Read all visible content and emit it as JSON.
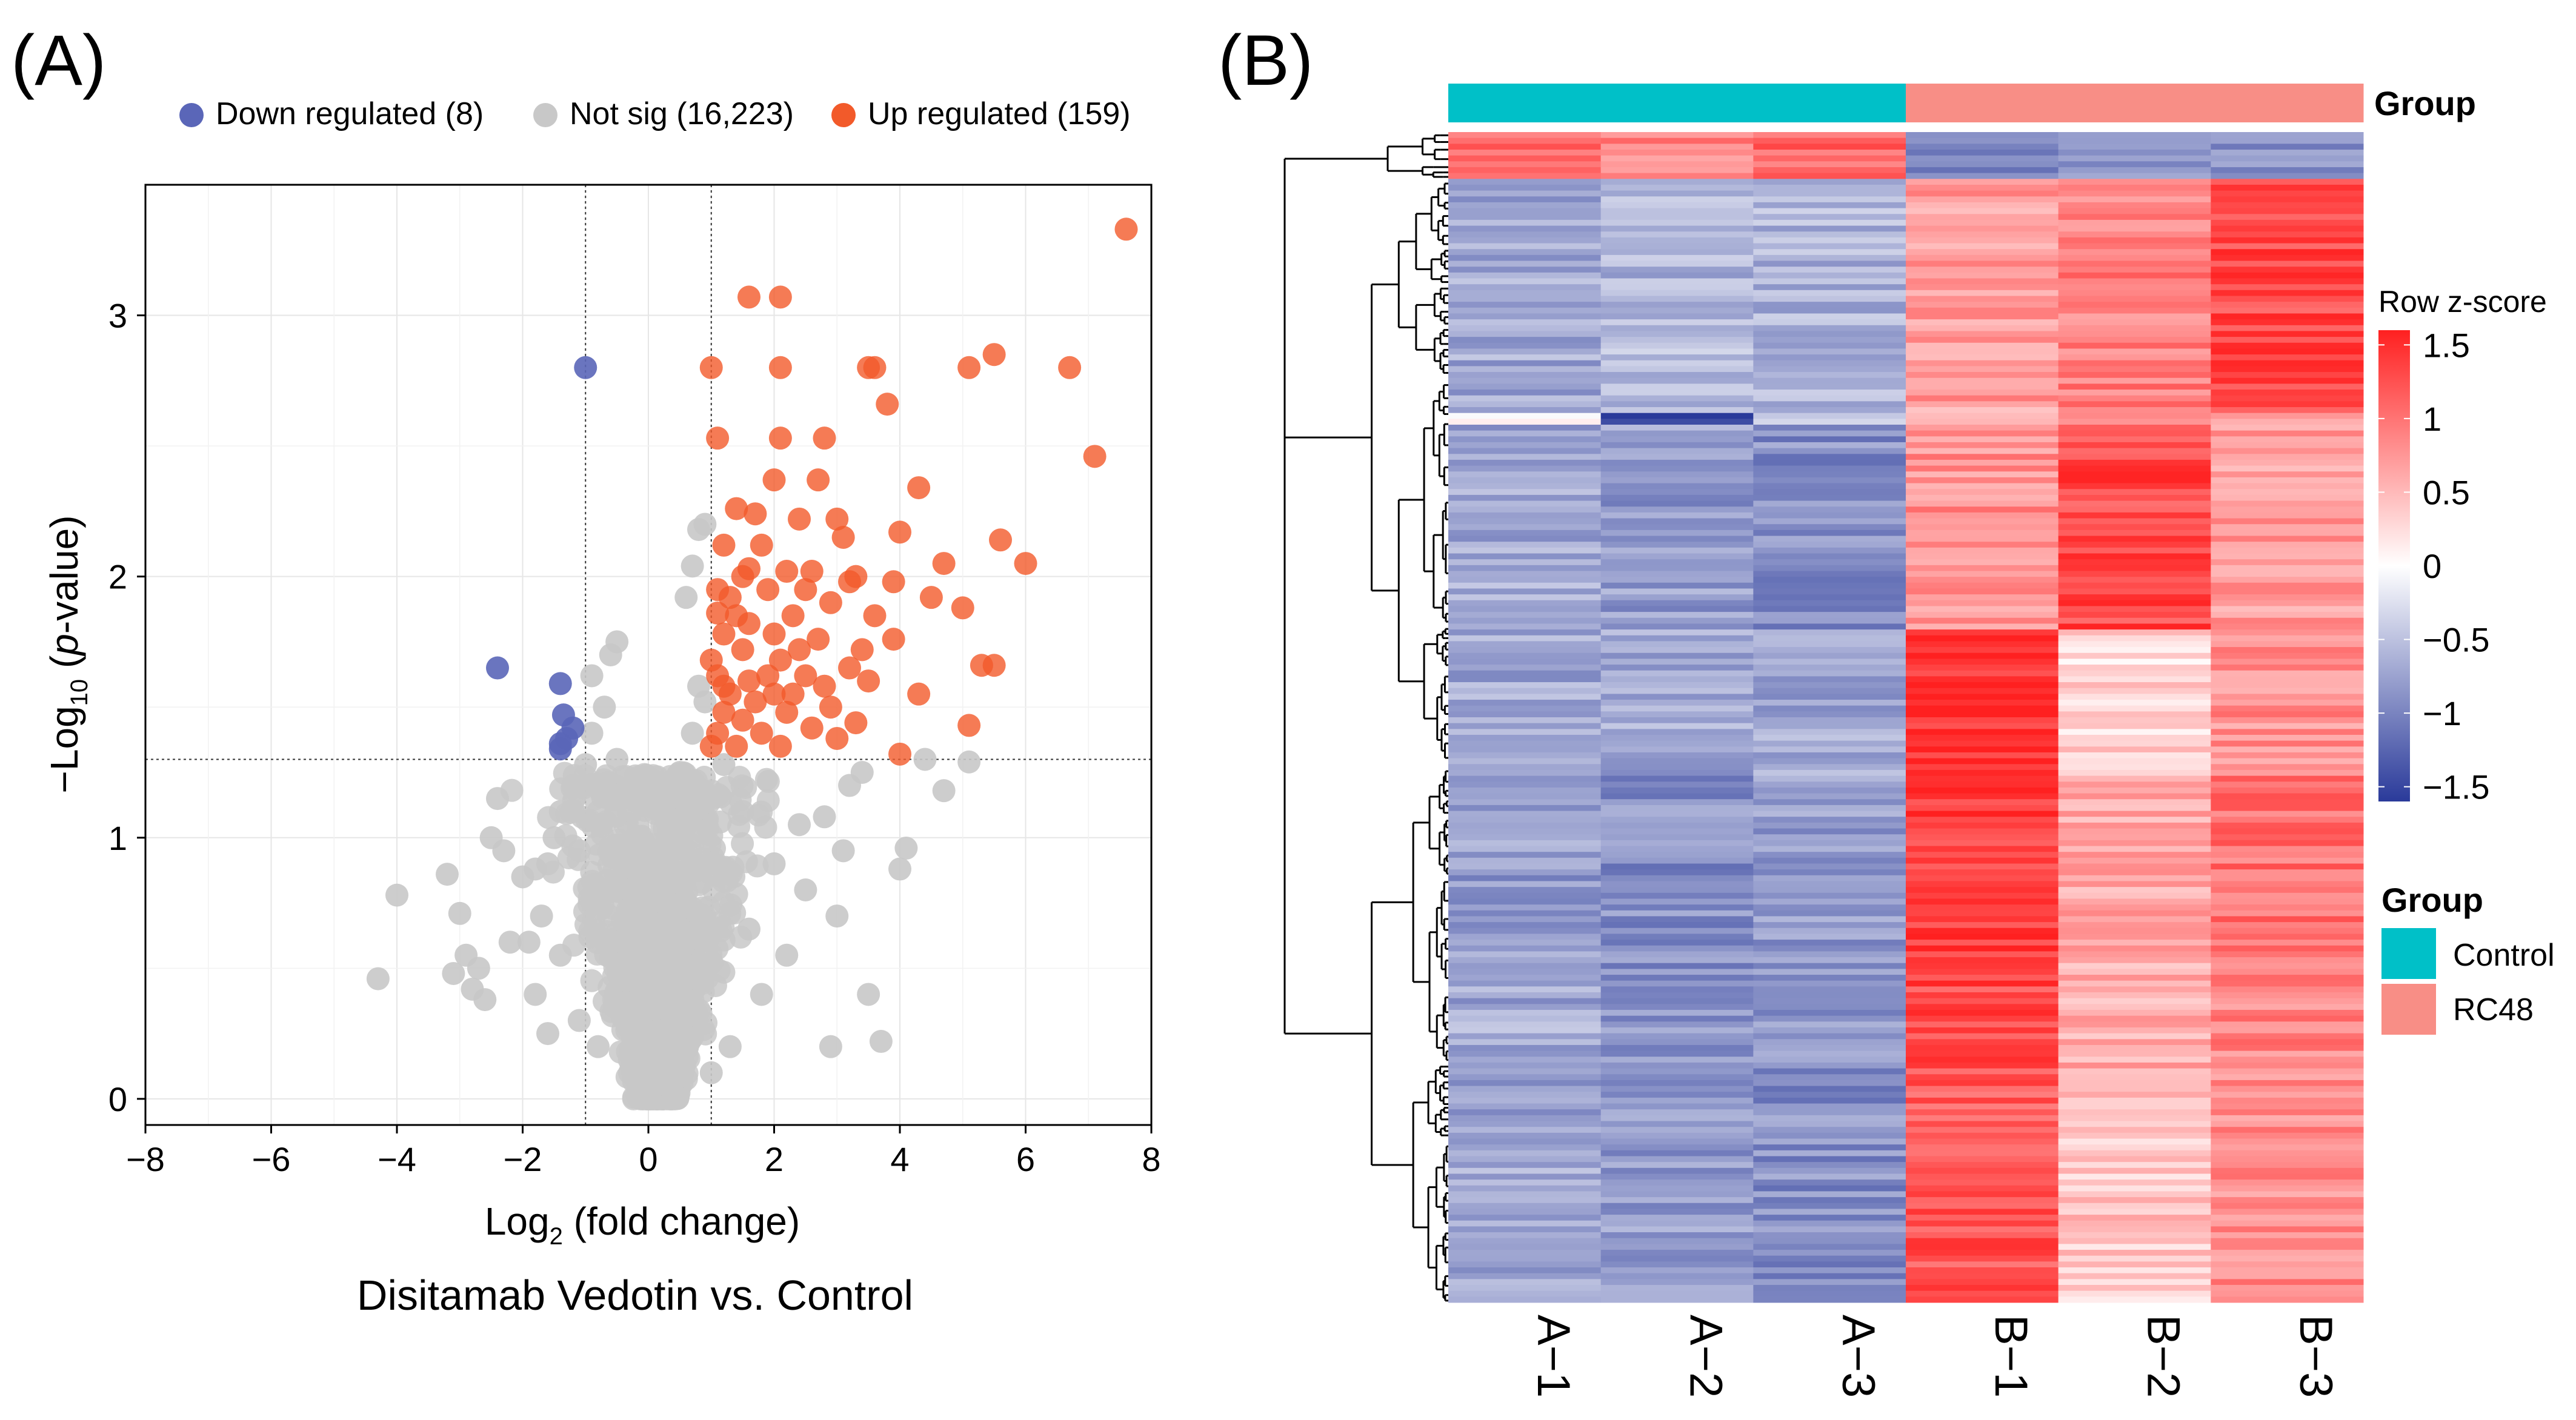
{
  "panel_a": {
    "label": "(A)",
    "legend": [
      {
        "label": "Down regulated (8)",
        "color": "#5a66b8"
      },
      {
        "label": "Not sig (16,223)",
        "color": "#c8c8c8"
      },
      {
        "label": "Up regulated (159)",
        "color": "#f25a2a"
      }
    ],
    "xlabel_main": "Log",
    "xlabel_sub": "2",
    "xlabel_rest": " (fold change)",
    "ylabel_pre": "−Log",
    "ylabel_sub": "10",
    "ylabel_open": " (",
    "ylabel_italic": "p",
    "ylabel_rest": "-value)",
    "caption": "Disitamab Vedotin vs. Control"
  },
  "panel_b": {
    "label": "(B)",
    "group_bar_label": "Group",
    "columns": [
      "A−1",
      "A−2",
      "A−3",
      "B−1",
      "B−2",
      "B−3"
    ],
    "colorbar_title": "Row z-score",
    "colorbar_ticks": [
      "1.5",
      "1",
      "0.5",
      "0",
      "−0.5",
      "−1",
      "−1.5"
    ],
    "group_legend_title": "Group",
    "group_legend": [
      {
        "label": "Control",
        "color": "#00c0c8"
      },
      {
        "label": "RC48",
        "color": "#f88e86"
      }
    ]
  },
  "chart_data": [
    {
      "type": "scatter",
      "title": "Disitamab Vedotin vs. Control",
      "xlabel": "Log2 (fold change)",
      "ylabel": "-Log10 (p-value)",
      "xlim": [
        -8,
        8
      ],
      "ylim": [
        -0.1,
        3.5
      ],
      "xticks": [
        -8,
        -6,
        -4,
        -2,
        0,
        2,
        4,
        6,
        8
      ],
      "yticks": [
        0,
        1,
        2,
        3
      ],
      "xtick_labels": [
        "−8",
        "−6",
        "−4",
        "−2",
        "0",
        "2",
        "4",
        "6",
        "8"
      ],
      "ytick_labels": [
        "0",
        "1",
        "2",
        "3"
      ],
      "thresholds": {
        "fc": [
          -1,
          1
        ],
        "p": 1.3
      },
      "grid": true,
      "legend_position": "top",
      "series": [
        {
          "name": "Down regulated (8)",
          "color": "#5a66b8",
          "points": [
            [
              -1.0,
              2.8
            ],
            [
              -2.4,
              1.65
            ],
            [
              -1.4,
              1.59
            ],
            [
              -1.2,
              1.42
            ],
            [
              -1.35,
              1.47
            ],
            [
              -1.4,
              1.36
            ],
            [
              -1.4,
              1.34
            ],
            [
              -1.3,
              1.38
            ]
          ]
        },
        {
          "name": "Up regulated (159)",
          "color": "#f25a2a",
          "points": [
            [
              7.6,
              3.33
            ],
            [
              1.6,
              3.07
            ],
            [
              2.1,
              3.07
            ],
            [
              1.0,
              2.8
            ],
            [
              2.1,
              2.8
            ],
            [
              3.5,
              2.8
            ],
            [
              3.6,
              2.8
            ],
            [
              5.1,
              2.8
            ],
            [
              5.5,
              2.85
            ],
            [
              6.7,
              2.8
            ],
            [
              3.8,
              2.66
            ],
            [
              1.1,
              2.53
            ],
            [
              2.1,
              2.53
            ],
            [
              2.8,
              2.53
            ],
            [
              7.1,
              2.46
            ],
            [
              2.0,
              2.37
            ],
            [
              2.7,
              2.37
            ],
            [
              4.3,
              2.34
            ],
            [
              1.4,
              2.26
            ],
            [
              1.7,
              2.24
            ],
            [
              2.4,
              2.22
            ],
            [
              3.0,
              2.22
            ],
            [
              4.0,
              2.17
            ],
            [
              3.1,
              2.15
            ],
            [
              5.6,
              2.14
            ],
            [
              1.2,
              2.12
            ],
            [
              4.7,
              2.05
            ],
            [
              6.0,
              2.05
            ],
            [
              1.6,
              2.03
            ],
            [
              2.2,
              2.02
            ],
            [
              2.6,
              2.02
            ],
            [
              3.3,
              2.0
            ],
            [
              3.9,
              1.98
            ],
            [
              1.1,
              1.95
            ],
            [
              1.9,
              1.95
            ],
            [
              2.9,
              1.9
            ],
            [
              4.5,
              1.92
            ],
            [
              5.0,
              1.88
            ],
            [
              1.4,
              1.85
            ],
            [
              2.3,
              1.85
            ],
            [
              3.6,
              1.85
            ],
            [
              1.2,
              1.78
            ],
            [
              2.0,
              1.78
            ],
            [
              2.7,
              1.76
            ],
            [
              3.9,
              1.76
            ],
            [
              5.5,
              1.66
            ],
            [
              5.3,
              1.66
            ],
            [
              1.5,
              1.72
            ],
            [
              3.2,
              1.65
            ],
            [
              1.1,
              1.62
            ],
            [
              2.5,
              1.62
            ],
            [
              3.5,
              1.6
            ],
            [
              4.3,
              1.55
            ],
            [
              1.3,
              1.55
            ],
            [
              2.0,
              1.55
            ],
            [
              2.9,
              1.5
            ],
            [
              1.5,
              1.45
            ],
            [
              2.2,
              1.48
            ],
            [
              3.3,
              1.44
            ],
            [
              5.1,
              1.43
            ],
            [
              1.1,
              1.4
            ],
            [
              1.8,
              1.4
            ],
            [
              2.6,
              1.42
            ],
            [
              1.4,
              1.35
            ],
            [
              2.1,
              1.35
            ],
            [
              3.0,
              1.38
            ],
            [
              4.0,
              1.32
            ],
            [
              1.2,
              1.48
            ],
            [
              1.7,
              1.52
            ],
            [
              2.3,
              1.55
            ],
            [
              2.8,
              1.58
            ],
            [
              1.0,
              1.68
            ],
            [
              1.3,
              1.92
            ],
            [
              1.8,
              2.12
            ],
            [
              2.5,
              1.95
            ],
            [
              3.2,
              1.98
            ],
            [
              1.5,
              2.0
            ],
            [
              1.0,
              1.35
            ],
            [
              1.2,
              1.58
            ],
            [
              1.6,
              1.6
            ],
            [
              2.1,
              1.68
            ],
            [
              1.9,
              1.62
            ],
            [
              1.1,
              1.86
            ],
            [
              1.6,
              1.82
            ],
            [
              2.4,
              1.72
            ],
            [
              3.4,
              1.72
            ]
          ]
        },
        {
          "name": "Not sig (16,223)",
          "color": "#c8c8c8",
          "points": [
            [
              -4.3,
              0.46
            ],
            [
              -3.2,
              0.86
            ],
            [
              -4.0,
              0.78
            ],
            [
              -3.0,
              0.71
            ],
            [
              -2.9,
              0.55
            ],
            [
              -2.7,
              0.5
            ],
            [
              -2.4,
              1.15
            ],
            [
              -2.5,
              1.0
            ],
            [
              -2.3,
              0.95
            ],
            [
              -2.0,
              0.85
            ],
            [
              -1.8,
              0.88
            ],
            [
              -3.1,
              0.48
            ],
            [
              -2.8,
              0.42
            ],
            [
              -2.6,
              0.38
            ],
            [
              -2.2,
              0.6
            ],
            [
              -1.9,
              0.6
            ],
            [
              -1.7,
              0.7
            ],
            [
              -1.6,
              0.9
            ],
            [
              -1.5,
              1.0
            ],
            [
              -1.4,
              1.1
            ],
            [
              -1.2,
              1.2
            ],
            [
              -0.9,
              1.4
            ],
            [
              -0.5,
              1.75
            ],
            [
              -0.6,
              1.7
            ],
            [
              -0.7,
              1.5
            ],
            [
              -0.9,
              1.62
            ],
            [
              -0.5,
              1.3
            ],
            [
              -1.0,
              1.28
            ],
            [
              -0.8,
              1.1
            ],
            [
              -1.1,
              0.95
            ],
            [
              -0.6,
              0.8
            ],
            [
              -0.3,
              0.6
            ],
            [
              0.2,
              0.8
            ],
            [
              0.4,
              1.0
            ],
            [
              0.5,
              1.25
            ],
            [
              0.7,
              1.4
            ],
            [
              0.8,
              1.58
            ],
            [
              0.9,
              1.52
            ],
            [
              0.6,
              1.92
            ],
            [
              0.8,
              2.18
            ],
            [
              0.9,
              2.2
            ],
            [
              0.7,
              2.04
            ],
            [
              1.2,
              1.28
            ],
            [
              1.5,
              1.1
            ],
            [
              2.0,
              0.9
            ],
            [
              2.5,
              0.8
            ],
            [
              3.0,
              0.7
            ],
            [
              3.5,
              0.4
            ],
            [
              3.7,
              0.22
            ],
            [
              2.9,
              0.2
            ],
            [
              4.0,
              0.88
            ],
            [
              4.1,
              0.96
            ],
            [
              4.4,
              1.3
            ],
            [
              4.7,
              1.18
            ],
            [
              5.1,
              1.29
            ],
            [
              3.4,
              1.25
            ],
            [
              2.8,
              1.08
            ],
            [
              2.2,
              0.55
            ],
            [
              1.8,
              0.4
            ],
            [
              1.3,
              0.2
            ],
            [
              1.0,
              0.1
            ],
            [
              0.3,
              0.05
            ],
            [
              -0.3,
              0.1
            ],
            [
              -0.8,
              0.2
            ],
            [
              -1.1,
              0.3
            ],
            [
              -1.6,
              0.25
            ],
            [
              -1.8,
              0.4
            ],
            [
              -1.4,
              0.55
            ],
            [
              2.4,
              1.05
            ],
            [
              3.1,
              0.95
            ],
            [
              3.2,
              1.2
            ],
            [
              1.6,
              0.65
            ]
          ]
        }
      ]
    },
    {
      "type": "heatmap",
      "title": "",
      "columns": [
        "A−1",
        "A−2",
        "A−3",
        "B−1",
        "B−2",
        "B−3"
      ],
      "column_groups": [
        "Control",
        "Control",
        "Control",
        "RC48",
        "RC48",
        "RC48"
      ],
      "colorbar": {
        "title": "Row z-score",
        "range": [
          -1.5,
          1.5
        ],
        "low": "#2a3a9a",
        "mid": "#ffffff",
        "high": "#ff2020"
      },
      "row_blocks": [
        {
          "rows": 8,
          "values": [
            1.0,
            0.9,
            1.1,
            -1.0,
            -0.8,
            -0.9
          ]
        },
        {
          "rows": 40,
          "values": [
            -0.7,
            -0.6,
            -0.6,
            0.7,
            0.9,
            1.3
          ]
        },
        {
          "rows": 2,
          "values": [
            0.0,
            -1.6,
            -0.3,
            0.4,
            0.6,
            0.6
          ]
        },
        {
          "rows": 35,
          "values": [
            -0.7,
            -0.8,
            -0.9,
            0.8,
            1.3,
            0.7
          ]
        },
        {
          "rows": 25,
          "values": [
            -0.7,
            -0.7,
            -0.7,
            1.5,
            0.3,
            0.8
          ]
        },
        {
          "rows": 30,
          "values": [
            -0.8,
            -0.9,
            -0.8,
            1.4,
            0.6,
            1.0
          ]
        },
        {
          "rows": 20,
          "values": [
            -0.7,
            -0.9,
            -0.9,
            1.3,
            0.6,
            0.9
          ]
        },
        {
          "rows": 40,
          "values": [
            -0.7,
            -0.8,
            -0.9,
            1.2,
            0.4,
            0.8
          ]
        }
      ]
    }
  ]
}
